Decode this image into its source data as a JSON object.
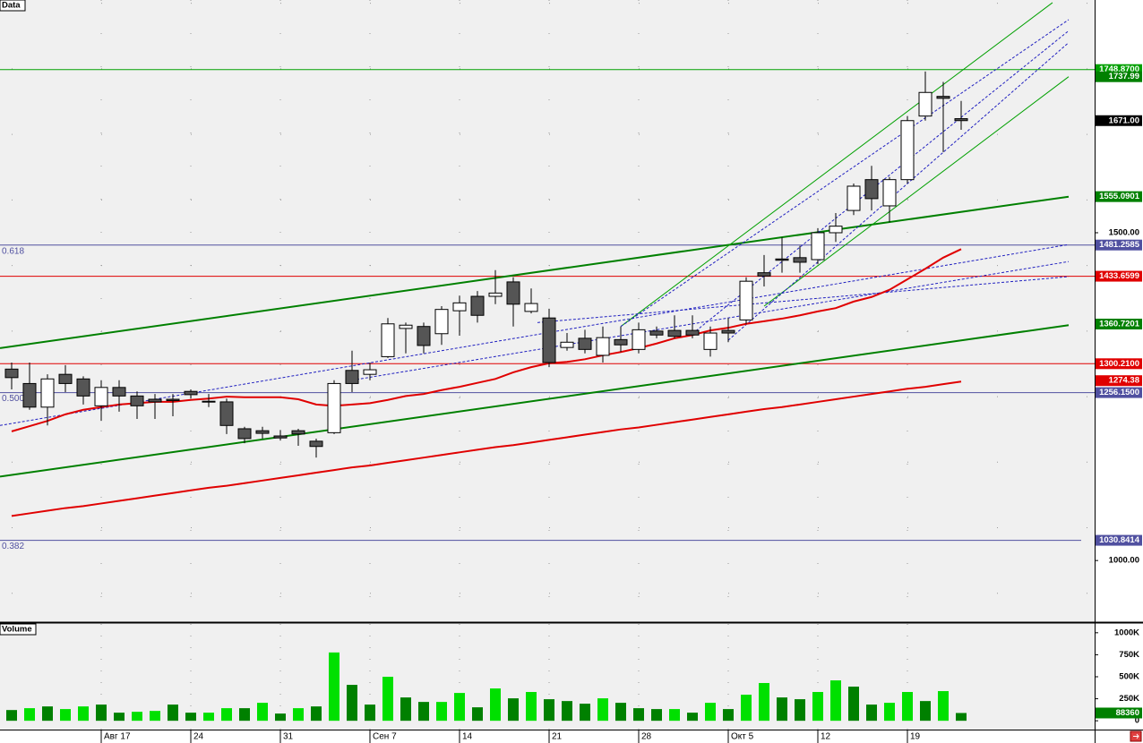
{
  "chart_data": {
    "type": "candlestick",
    "panel_title": "Data",
    "volume_title": "Volume",
    "categories": [
      null,
      null,
      null,
      null,
      null,
      "Авг 17",
      null,
      null,
      null,
      null,
      "24",
      null,
      null,
      null,
      null,
      "31",
      null,
      null,
      null,
      null,
      "Сен 7",
      null,
      null,
      null,
      null,
      "14",
      null,
      null,
      null,
      null,
      "21",
      null,
      null,
      null,
      null,
      "28",
      null,
      null,
      null,
      null,
      "Окт 5",
      null,
      null,
      null,
      null,
      "12",
      null,
      null,
      null,
      null,
      "19",
      null,
      null,
      null
    ],
    "open": [
      1292,
      1270,
      1234,
      1284,
      1277,
      1236,
      1264,
      1251,
      1246,
      1246,
      1258,
      1243,
      1242,
      1201,
      1198,
      1190,
      1198,
      1182,
      1195,
      1290,
      1284,
      1311,
      1354,
      1357,
      1346,
      1381,
      1403,
      1403,
      1425,
      1380,
      1370,
      1325,
      1339,
      1313,
      1337,
      1322,
      1350,
      1351,
      1351,
      1322,
      1351,
      1367,
      1439,
      1460,
      1462,
      1459,
      1500,
      1534,
      1581,
      1541,
      1581,
      1678,
      1708,
      1674
    ],
    "high": [
      1302,
      1302,
      1284,
      1298,
      1281,
      1275,
      1275,
      1258,
      1254,
      1254,
      1261,
      1254,
      1247,
      1204,
      1204,
      1199,
      1201,
      1186,
      1275,
      1320,
      1302,
      1370,
      1363,
      1363,
      1388,
      1404,
      1411,
      1443,
      1432,
      1415,
      1384,
      1347,
      1352,
      1357,
      1357,
      1363,
      1357,
      1374,
      1374,
      1357,
      1370,
      1432,
      1466,
      1493,
      1480,
      1507,
      1530,
      1575,
      1602,
      1585,
      1678,
      1746,
      1730,
      1701
    ],
    "low": [
      1261,
      1230,
      1206,
      1257,
      1238,
      1213,
      1227,
      1216,
      1216,
      1220,
      1247,
      1234,
      1193,
      1179,
      1186,
      1183,
      1175,
      1157,
      1193,
      1257,
      1275,
      1309,
      1316,
      1316,
      1329,
      1343,
      1363,
      1391,
      1357,
      1377,
      1295,
      1320,
      1316,
      1302,
      1318,
      1316,
      1339,
      1339,
      1339,
      1311,
      1333,
      1361,
      1418,
      1439,
      1439,
      1452,
      1486,
      1527,
      1534,
      1516,
      1575,
      1671,
      1623,
      1657
    ],
    "close": [
      1279,
      1234,
      1277,
      1270,
      1251,
      1264,
      1251,
      1236,
      1242,
      1244,
      1253,
      1242,
      1206,
      1186,
      1194,
      1187,
      1193,
      1174,
      1270,
      1270,
      1291,
      1361,
      1359,
      1328,
      1383,
      1393,
      1374,
      1408,
      1391,
      1392,
      1302,
      1333,
      1322,
      1340,
      1329,
      1352,
      1344,
      1342,
      1344,
      1347,
      1347,
      1426,
      1434,
      1458,
      1455,
      1500,
      1510,
      1571,
      1552,
      1581,
      1671,
      1714,
      1705,
      1671
    ],
    "up_color": "#ffffff",
    "down_color": "#555555",
    "ylim": [
      906,
      1855
    ],
    "yticks": [
      {
        "value": 1000,
        "label": "1000.00"
      },
      {
        "value": 1500,
        "label": "1500.00"
      }
    ],
    "ygrid": [
      950,
      1050,
      1150,
      1250,
      1350,
      1450,
      1550,
      1650,
      1750,
      1850
    ],
    "series": [
      {
        "color": "#e00000",
        "values": [
          1197,
          1205,
          1213,
          1223,
          1230,
          1234,
          1238,
          1240,
          1242,
          1242,
          1245,
          1247,
          1250,
          1249,
          1249,
          1249,
          1246,
          1238,
          1236,
          1238,
          1240,
          1245,
          1251,
          1254,
          1260,
          1265,
          1271,
          1277,
          1287,
          1295,
          1301,
          1303,
          1307,
          1313,
          1318,
          1324,
          1331,
          1339,
          1344,
          1351,
          1355,
          1361,
          1365,
          1369,
          1374,
          1380,
          1385,
          1395,
          1402,
          1413,
          1429,
          1445,
          1462,
          1475
        ]
      },
      {
        "color": "#e00000",
        "values": [
          1068,
          1072,
          1076,
          1080,
          1083,
          1087,
          1091,
          1095,
          1099,
          1103,
          1107,
          1111,
          1114,
          1118,
          1122,
          1126,
          1130,
          1134,
          1138,
          1142,
          1145,
          1149,
          1153,
          1157,
          1161,
          1165,
          1169,
          1173,
          1176,
          1180,
          1184,
          1188,
          1192,
          1196,
          1200,
          1203,
          1207,
          1211,
          1215,
          1219,
          1223,
          1227,
          1231,
          1234,
          1238,
          1242,
          1246,
          1250,
          1254,
          1258,
          1262,
          1265,
          1269,
          1273
        ]
      }
    ],
    "trendlines": [
      {
        "x": [
          -0.65,
          59
        ],
        "y": [
          1324,
          1555
        ],
        "color": "#008000",
        "width": 2,
        "dashed": false
      },
      {
        "x": [
          -0.65,
          59
        ],
        "y": [
          1128,
          1359
        ],
        "color": "#008000",
        "width": 2,
        "dashed": false
      },
      {
        "x": [
          34,
          58.1
        ],
        "y": [
          1357,
          1851
        ],
        "color": "#00a000",
        "width": 1,
        "dashed": false
      },
      {
        "x": [
          42,
          59
        ],
        "y": [
          1388,
          1738
        ],
        "color": "#00a000",
        "width": 1,
        "dashed": false
      },
      {
        "x": [
          -0.65,
          59
        ],
        "y": [
          1206,
          1482
        ],
        "color": "#2020c0",
        "width": 1,
        "dashed": true
      },
      {
        "x": [
          19,
          59
        ],
        "y": [
          1275,
          1456
        ],
        "color": "#2020c0",
        "width": 1,
        "dashed": true
      },
      {
        "x": [
          29.35,
          59
        ],
        "y": [
          1363,
          1433
        ],
        "color": "#2020c0",
        "width": 1,
        "dashed": true
      },
      {
        "x": [
          34,
          59
        ],
        "y": [
          1357,
          1825
        ],
        "color": "#2020c0",
        "width": 1,
        "dashed": true
      },
      {
        "x": [
          38,
          59
        ],
        "y": [
          1346,
          1808
        ],
        "color": "#2020c0",
        "width": 1,
        "dashed": true
      },
      {
        "x": [
          40,
          59
        ],
        "y": [
          1336,
          1790
        ],
        "color": "#2020c0",
        "width": 1,
        "dashed": true
      }
    ],
    "levels": [
      {
        "value": 1748.87,
        "label": "1748.8700",
        "color": "#00a000"
      },
      {
        "value": 1481.2585,
        "label": "1481.2585",
        "color": "#5050a0",
        "fib": "0.618"
      },
      {
        "value": 1433.6599,
        "label": "1433.6599",
        "color": "#e00000"
      },
      {
        "value": 1300.21,
        "label": "1300.2100",
        "color": "#e00000"
      },
      {
        "value": 1256.15,
        "label": "1256.1500",
        "color": "#5050a0",
        "fib": "0.500"
      },
      {
        "value": 1030.8414,
        "label": "1030.8414",
        "color": "#5050a0",
        "fib": "0.382"
      }
    ],
    "markers": [
      {
        "value": 1737.99,
        "label": "1737.99",
        "color": "#008000"
      },
      {
        "value": 1671,
        "label": "1671.00",
        "color": "#000000"
      },
      {
        "value": 1555.0901,
        "label": "1555.0901",
        "color": "#008000"
      },
      {
        "value": 1360.7201,
        "label": "1360.7201",
        "color": "#008000"
      },
      {
        "value": 1274.38,
        "label": "1274.38",
        "color": "#e00000"
      }
    ],
    "volume": [
      122000,
      143000,
      163000,
      133000,
      163000,
      184000,
      92000,
      102000,
      112000,
      184000,
      92000,
      92000,
      143000,
      143000,
      204000,
      82000,
      143000,
      163000,
      776000,
      408000,
      184000,
      500000,
      265000,
      214000,
      214000,
      316000,
      153000,
      367000,
      255000,
      327000,
      245000,
      224000,
      194000,
      255000,
      204000,
      143000,
      133000,
      133000,
      92000,
      204000,
      133000,
      296000,
      429000,
      265000,
      245000,
      327000,
      459000,
      388000,
      184000,
      204000,
      327000,
      224000,
      337000,
      88360
    ],
    "volume_colors": [
      "#008000",
      "#00e000",
      "#008000",
      "#00e000",
      "#00e000",
      "#008000",
      "#008000",
      "#00e000",
      "#00e000",
      "#008000",
      "#008000",
      "#00e000",
      "#00e000",
      "#008000",
      "#00e000",
      "#008000",
      "#00e000",
      "#008000",
      "#00e000",
      "#008000",
      "#008000",
      "#00e000",
      "#008000",
      "#008000",
      "#00e000",
      "#00e000",
      "#008000",
      "#00e000",
      "#008000",
      "#00e000",
      "#008000",
      "#008000",
      "#008000",
      "#00e000",
      "#008000",
      "#008000",
      "#008000",
      "#00e000",
      "#008000",
      "#00e000",
      "#008000",
      "#00e000",
      "#00e000",
      "#008000",
      "#008000",
      "#00e000",
      "#00e000",
      "#008000",
      "#008000",
      "#00e000",
      "#00e000",
      "#008000",
      "#00e000",
      "#008000"
    ],
    "volume_last_label": "88360",
    "volume_ylim": [
      -100000,
      1100000
    ],
    "volume_ticks": [
      0,
      {
        "value": 250000,
        "label": "250K"
      },
      {
        "value": 500000,
        "label": "500K"
      },
      {
        "value": 750000,
        "label": "750K"
      },
      {
        "value": 1000000,
        "label": "1000K"
      }
    ]
  }
}
